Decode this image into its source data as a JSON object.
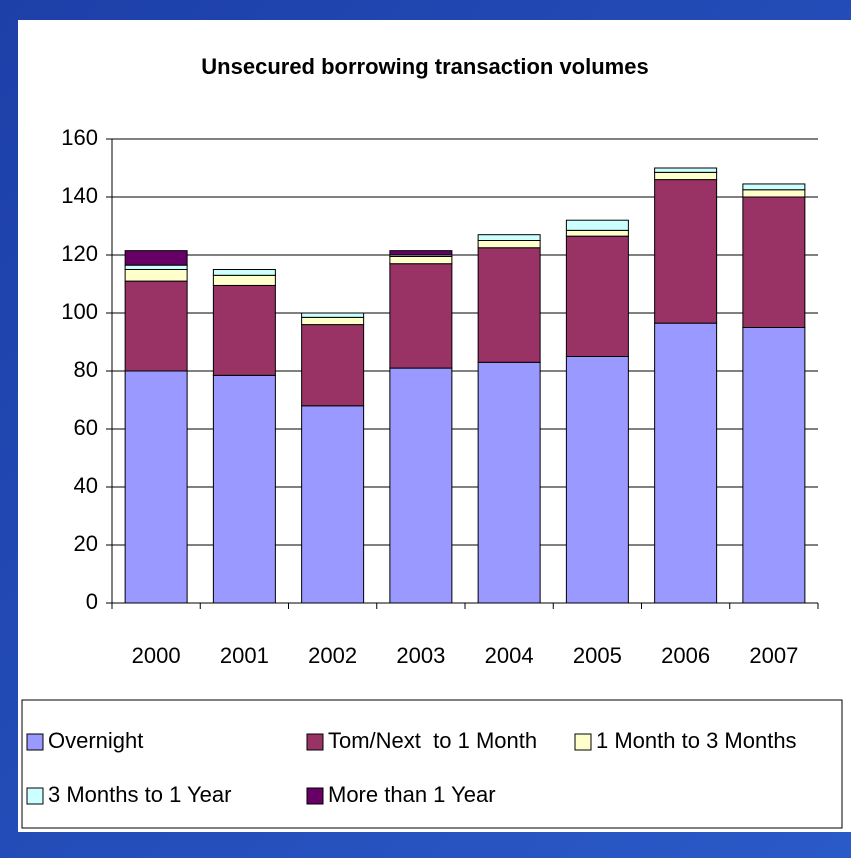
{
  "chart_data": {
    "type": "stacked_bar",
    "title": "Unsecured borrowing transaction volumes",
    "categories": [
      "2000",
      "2001",
      "2002",
      "2003",
      "2004",
      "2005",
      "2006",
      "2007"
    ],
    "series": [
      {
        "name": "Overnight",
        "color": "#9999ff",
        "values": [
          80,
          78.5,
          68,
          81,
          83,
          85,
          96.5,
          95
        ]
      },
      {
        "name": "Tom/Next  to 1 Month",
        "color": "#993366",
        "values": [
          31,
          31,
          28,
          36,
          39.5,
          41.5,
          49.5,
          45
        ]
      },
      {
        "name": "1 Month to 3 Months",
        "color": "#ffffcc",
        "values": [
          4,
          3.5,
          2.5,
          2.5,
          2.5,
          2,
          2.5,
          2.5
        ]
      },
      {
        "name": "3 Months to 1 Year",
        "color": "#ccffff",
        "values": [
          1.5,
          2,
          1.5,
          0.5,
          2,
          3.5,
          1.5,
          2
        ]
      },
      {
        "name": "More than 1 Year",
        "color": "#660066",
        "values": [
          5,
          0,
          0,
          1.5,
          0,
          0,
          0,
          0
        ]
      }
    ],
    "ylim": [
      0,
      160
    ],
    "yticks": [
      0,
      20,
      40,
      60,
      80,
      100,
      120,
      140,
      160
    ],
    "grid": true,
    "legend": "bottom"
  }
}
